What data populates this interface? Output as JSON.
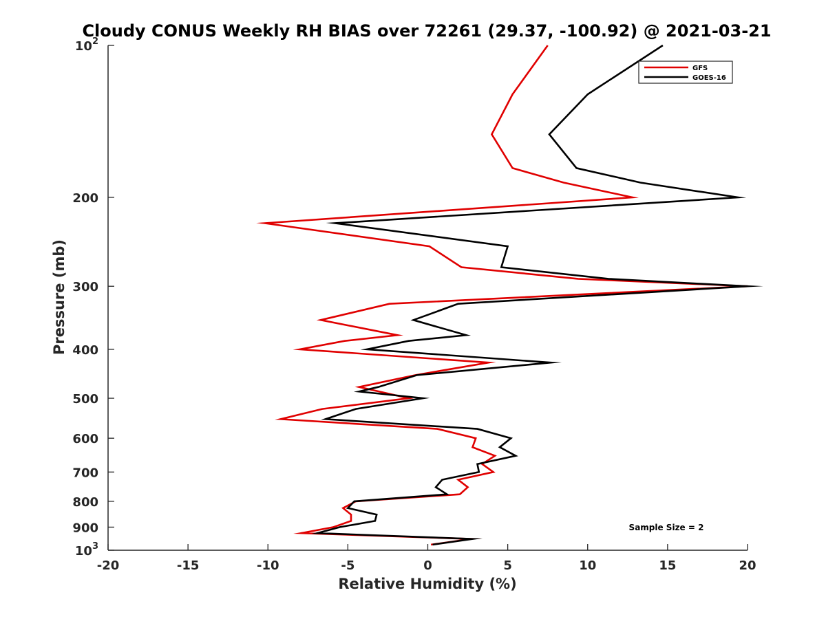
{
  "chart_data": {
    "type": "line",
    "title": "Cloudy CONUS Weekly RH BIAS over 72261 (29.37, -100.92) @ 2021-03-21",
    "xlabel": "Relative Humidity (%)",
    "ylabel": "Pressure (mb)",
    "xlim": [
      -20,
      20
    ],
    "ylim": [
      100,
      1000
    ],
    "y_scale": "log",
    "y_reversed": true,
    "x_ticks": [
      "-20",
      "-15",
      "-10",
      "-5",
      "0",
      "5",
      "10",
      "15",
      "20"
    ],
    "y_ticks": [
      {
        "value": 100,
        "base": "10",
        "exp": "2"
      },
      {
        "value": 200,
        "label": "200"
      },
      {
        "value": 300,
        "label": "300"
      },
      {
        "value": 400,
        "label": "400"
      },
      {
        "value": 500,
        "label": "500"
      },
      {
        "value": 600,
        "label": "600"
      },
      {
        "value": 700,
        "label": "700"
      },
      {
        "value": 800,
        "label": "800"
      },
      {
        "value": 900,
        "label": "900"
      },
      {
        "value": 1000,
        "base": "10",
        "exp": "3"
      }
    ],
    "grid": false,
    "legend_position": "top-right",
    "annotation": "Sample Size = 2",
    "series": [
      {
        "name": "GFS",
        "color": "#e00000",
        "points": [
          {
            "x": 7.5,
            "y": 100
          },
          {
            "x": 5.3,
            "y": 125
          },
          {
            "x": 4.0,
            "y": 150
          },
          {
            "x": 5.3,
            "y": 175
          },
          {
            "x": 8.5,
            "y": 187
          },
          {
            "x": 12.8,
            "y": 200
          },
          {
            "x": -10.2,
            "y": 225
          },
          {
            "x": 0.1,
            "y": 250
          },
          {
            "x": 2.1,
            "y": 275
          },
          {
            "x": 9.4,
            "y": 290
          },
          {
            "x": 20.0,
            "y": 300
          },
          {
            "x": -2.4,
            "y": 325
          },
          {
            "x": -6.7,
            "y": 350
          },
          {
            "x": -1.9,
            "y": 375
          },
          {
            "x": -5.2,
            "y": 385
          },
          {
            "x": -8.0,
            "y": 400
          },
          {
            "x": 3.8,
            "y": 425
          },
          {
            "x": -0.8,
            "y": 450
          },
          {
            "x": -4.3,
            "y": 475
          },
          {
            "x": -1.2,
            "y": 500
          },
          {
            "x": -6.6,
            "y": 525
          },
          {
            "x": -9.2,
            "y": 550
          },
          {
            "x": 0.6,
            "y": 575
          },
          {
            "x": 3.0,
            "y": 600
          },
          {
            "x": 2.8,
            "y": 625
          },
          {
            "x": 4.2,
            "y": 650
          },
          {
            "x": 3.4,
            "y": 675
          },
          {
            "x": 4.1,
            "y": 700
          },
          {
            "x": 1.9,
            "y": 725
          },
          {
            "x": 2.5,
            "y": 750
          },
          {
            "x": 2.0,
            "y": 775
          },
          {
            "x": -4.5,
            "y": 800
          },
          {
            "x": -5.3,
            "y": 825
          },
          {
            "x": -4.8,
            "y": 850
          },
          {
            "x": -4.8,
            "y": 875
          },
          {
            "x": -5.9,
            "y": 900
          },
          {
            "x": -7.9,
            "y": 925
          },
          {
            "x": 2.7,
            "y": 950
          },
          {
            "x": 0.2,
            "y": 975
          }
        ]
      },
      {
        "name": "GOES-16",
        "color": "#000000",
        "points": [
          {
            "x": 14.7,
            "y": 100
          },
          {
            "x": 10.0,
            "y": 125
          },
          {
            "x": 7.6,
            "y": 150
          },
          {
            "x": 9.3,
            "y": 175
          },
          {
            "x": 13.3,
            "y": 187
          },
          {
            "x": 19.4,
            "y": 200
          },
          {
            "x": -5.8,
            "y": 225
          },
          {
            "x": 5.0,
            "y": 250
          },
          {
            "x": 4.6,
            "y": 275
          },
          {
            "x": 11.3,
            "y": 290
          },
          {
            "x": 20.0,
            "y": 300
          },
          {
            "x": 1.9,
            "y": 325
          },
          {
            "x": -0.9,
            "y": 350
          },
          {
            "x": 2.4,
            "y": 375
          },
          {
            "x": -1.2,
            "y": 385
          },
          {
            "x": -3.8,
            "y": 400
          },
          {
            "x": 7.7,
            "y": 425
          },
          {
            "x": -0.7,
            "y": 450
          },
          {
            "x": -3.1,
            "y": 475
          },
          {
            "x": -4.3,
            "y": 485
          },
          {
            "x": -0.3,
            "y": 500
          },
          {
            "x": -4.5,
            "y": 525
          },
          {
            "x": -6.4,
            "y": 550
          },
          {
            "x": 3.1,
            "y": 575
          },
          {
            "x": 5.2,
            "y": 600
          },
          {
            "x": 4.5,
            "y": 625
          },
          {
            "x": 5.5,
            "y": 650
          },
          {
            "x": 3.1,
            "y": 675
          },
          {
            "x": 3.2,
            "y": 700
          },
          {
            "x": 0.9,
            "y": 725
          },
          {
            "x": 0.5,
            "y": 750
          },
          {
            "x": 1.2,
            "y": 775
          },
          {
            "x": -4.6,
            "y": 800
          },
          {
            "x": -5.0,
            "y": 825
          },
          {
            "x": -3.2,
            "y": 850
          },
          {
            "x": -3.3,
            "y": 875
          },
          {
            "x": -5.5,
            "y": 900
          },
          {
            "x": -6.9,
            "y": 925
          },
          {
            "x": 2.8,
            "y": 950
          },
          {
            "x": 0.3,
            "y": 975
          }
        ]
      }
    ]
  }
}
